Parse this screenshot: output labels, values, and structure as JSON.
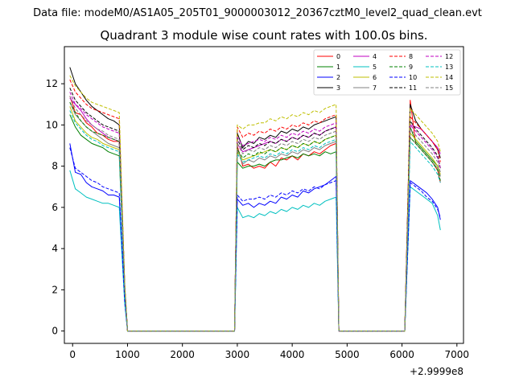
{
  "chart_data": {
    "type": "line",
    "suptitle": "Data file: modeM0/AS1A05_205T01_9000003012_20367cztM0_level2_quad_clean.evt",
    "title": "Quadrant 3 module wise count rates with 100.0s bins.",
    "xlabel": "",
    "ylabel": "",
    "x_offset_label": "+2.9999e8",
    "xlim": [
      -150,
      7120
    ],
    "ylim": [
      -0.6,
      13.8
    ],
    "x_ticks": [
      0,
      1000,
      2000,
      3000,
      4000,
      5000,
      6000,
      7000
    ],
    "x_tick_labels": [
      "0",
      "1000",
      "2000",
      "3000",
      "4000",
      "5000",
      "6000",
      "7000"
    ],
    "y_ticks": [
      0,
      2,
      4,
      6,
      8,
      10,
      12
    ],
    "y_tick_labels": [
      "0",
      "2",
      "4",
      "6",
      "8",
      "10",
      "12"
    ],
    "grid": false,
    "legend_placement": "top-right",
    "legend_columns": 4,
    "segments": {
      "seg1_x": [
        -50,
        50,
        150,
        250,
        350,
        450,
        550,
        650,
        750,
        850
      ],
      "drop_x": [
        950,
        1000
      ],
      "zero_x": [
        1000,
        2950
      ],
      "seg2_x": [
        3000,
        3100,
        3200,
        3300,
        3400,
        3500,
        3600,
        3700,
        3800,
        3900,
        4000,
        4100,
        4200,
        4300,
        4400,
        4500,
        4600,
        4700,
        4800
      ],
      "seg3_x": [
        6150,
        6250,
        6350,
        6450,
        6550,
        6650,
        6700
      ]
    },
    "series": [
      {
        "name": "0",
        "color": "#ff0000",
        "dashed": false,
        "seg1": [
          11.4,
          10.6,
          10.5,
          10.1,
          9.9,
          9.6,
          9.5,
          9.3,
          9.2,
          9.2
        ],
        "seg2": [
          9.0,
          8.0,
          8.1,
          7.9,
          8.0,
          7.9,
          8.2,
          8.0,
          8.4,
          8.3,
          8.5,
          8.3,
          8.6,
          8.5,
          8.7,
          8.6,
          8.8,
          9.0,
          9.1
        ],
        "seg3": [
          11.2,
          9.1,
          8.8,
          8.5,
          8.2,
          7.8,
          7.2
        ]
      },
      {
        "name": "1",
        "color": "#008000",
        "dashed": false,
        "seg1": [
          10.5,
          9.9,
          9.5,
          9.3,
          9.1,
          9.0,
          8.9,
          8.7,
          8.6,
          8.5
        ],
        "seg2": [
          8.2,
          7.9,
          8.0,
          8.0,
          8.1,
          8.0,
          8.2,
          8.3,
          8.3,
          8.4,
          8.5,
          8.4,
          8.6,
          8.5,
          8.6,
          8.5,
          8.7,
          8.6,
          8.7
        ],
        "seg3": [
          9.9,
          9.2,
          8.9,
          8.6,
          8.3,
          8.0,
          7.5
        ]
      },
      {
        "name": "2",
        "color": "#0000ff",
        "dashed": false,
        "seg1": [
          9.1,
          7.7,
          7.6,
          7.2,
          7.0,
          6.9,
          6.8,
          6.6,
          6.6,
          6.5
        ],
        "seg2": [
          6.4,
          6.1,
          6.2,
          6.0,
          6.2,
          6.1,
          6.3,
          6.2,
          6.5,
          6.4,
          6.6,
          6.5,
          6.8,
          6.7,
          6.9,
          7.0,
          7.1,
          7.3,
          7.5
        ],
        "seg3": [
          7.3,
          7.1,
          6.9,
          6.7,
          6.4,
          6.0,
          5.4
        ]
      },
      {
        "name": "3",
        "color": "#000000",
        "dashed": false,
        "seg1": [
          12.8,
          12.0,
          11.6,
          11.2,
          10.9,
          10.7,
          10.5,
          10.3,
          10.2,
          10.0
        ],
        "seg2": [
          9.6,
          8.9,
          9.2,
          9.1,
          9.4,
          9.3,
          9.5,
          9.4,
          9.7,
          9.6,
          9.8,
          9.7,
          9.9,
          9.8,
          10.0,
          10.1,
          10.2,
          10.3,
          10.4
        ],
        "seg3": [
          11.0,
          10.2,
          9.8,
          9.5,
          9.2,
          8.8,
          8.4
        ]
      },
      {
        "name": "4",
        "color": "#c000c0",
        "dashed": false,
        "seg1": [
          11.3,
          11.0,
          10.7,
          10.3,
          10.0,
          9.8,
          9.6,
          9.4,
          9.3,
          9.2
        ],
        "seg2": [
          9.1,
          8.7,
          8.8,
          8.9,
          9.0,
          9.1,
          9.2,
          9.1,
          9.3,
          9.2,
          9.4,
          9.3,
          9.5,
          9.4,
          9.6,
          9.5,
          9.7,
          9.8,
          9.9
        ],
        "seg3": [
          10.0,
          9.9,
          9.8,
          9.5,
          9.2,
          8.9,
          8.6
        ]
      },
      {
        "name": "5",
        "color": "#00c0c0",
        "dashed": false,
        "seg1": [
          7.8,
          6.9,
          6.7,
          6.5,
          6.4,
          6.3,
          6.2,
          6.2,
          6.1,
          6.0
        ],
        "seg2": [
          6.0,
          5.5,
          5.6,
          5.5,
          5.7,
          5.6,
          5.8,
          5.7,
          5.9,
          5.8,
          6.0,
          5.9,
          6.1,
          6.0,
          6.2,
          6.1,
          6.3,
          6.4,
          6.5
        ],
        "seg3": [
          7.0,
          6.8,
          6.6,
          6.4,
          6.2,
          5.6,
          4.9
        ]
      },
      {
        "name": "6",
        "color": "#bfbf00",
        "dashed": false,
        "seg1": [
          10.9,
          10.2,
          9.9,
          9.6,
          9.4,
          9.3,
          9.1,
          9.0,
          8.9,
          8.8
        ],
        "seg2": [
          8.7,
          8.3,
          8.4,
          8.5,
          8.6,
          8.7,
          8.8,
          8.7,
          8.9,
          8.8,
          9.0,
          8.9,
          9.1,
          9.0,
          9.2,
          9.1,
          9.3,
          9.4,
          9.5
        ],
        "seg3": [
          9.6,
          9.3,
          9.0,
          8.7,
          8.4,
          8.0,
          7.6
        ]
      },
      {
        "name": "7",
        "color": "#808080",
        "dashed": false,
        "seg1": [
          11.1,
          10.5,
          10.2,
          9.9,
          9.7,
          9.5,
          9.3,
          9.1,
          9.0,
          8.9
        ],
        "seg2": [
          8.9,
          8.1,
          8.3,
          8.2,
          8.4,
          8.3,
          8.5,
          8.4,
          8.6,
          8.5,
          8.7,
          8.6,
          8.8,
          8.7,
          8.9,
          8.8,
          9.0,
          9.1,
          9.2
        ],
        "seg3": [
          9.4,
          9.1,
          8.8,
          8.5,
          8.2,
          7.9,
          7.5
        ]
      },
      {
        "name": "8",
        "color": "#ff0000",
        "dashed": true,
        "seg1": [
          12.2,
          11.6,
          11.3,
          11.0,
          10.8,
          10.7,
          10.6,
          10.5,
          10.4,
          10.3
        ],
        "seg2": [
          9.9,
          9.4,
          9.6,
          9.5,
          9.7,
          9.6,
          9.8,
          9.7,
          9.9,
          9.8,
          10.0,
          9.9,
          10.1,
          10.0,
          10.2,
          10.1,
          10.3,
          10.4,
          10.5
        ],
        "seg3": [
          10.4,
          10.1,
          9.8,
          9.5,
          9.2,
          8.8,
          8.2
        ]
      },
      {
        "name": "9",
        "color": "#008000",
        "dashed": true,
        "seg1": [
          11.1,
          10.6,
          10.2,
          9.9,
          9.7,
          9.6,
          9.5,
          9.4,
          9.3,
          9.2
        ],
        "seg2": [
          8.8,
          8.4,
          8.6,
          8.5,
          8.7,
          8.6,
          8.8,
          8.7,
          8.9,
          8.8,
          9.0,
          8.9,
          9.1,
          9.0,
          9.2,
          9.1,
          9.3,
          9.4,
          9.5
        ],
        "seg3": [
          9.4,
          9.1,
          8.8,
          8.5,
          8.2,
          7.8,
          7.3
        ]
      },
      {
        "name": "10",
        "color": "#0000ff",
        "dashed": true,
        "seg1": [
          8.9,
          7.9,
          7.7,
          7.5,
          7.3,
          7.2,
          7.0,
          6.9,
          6.8,
          6.7
        ],
        "seg2": [
          6.6,
          6.3,
          6.4,
          6.4,
          6.5,
          6.4,
          6.6,
          6.5,
          6.7,
          6.6,
          6.8,
          6.7,
          6.9,
          6.8,
          7.0,
          6.9,
          7.1,
          7.2,
          7.3
        ],
        "seg3": [
          7.2,
          7.0,
          6.8,
          6.5,
          6.3,
          5.9,
          5.5
        ]
      },
      {
        "name": "11",
        "color": "#000000",
        "dashed": true,
        "seg1": [
          11.8,
          11.2,
          10.9,
          10.6,
          10.4,
          10.2,
          10.0,
          9.9,
          9.8,
          9.7
        ],
        "seg2": [
          9.3,
          8.8,
          9.0,
          8.9,
          9.1,
          9.0,
          9.2,
          9.1,
          9.3,
          9.2,
          9.4,
          9.3,
          9.5,
          9.4,
          9.6,
          9.5,
          9.7,
          9.8,
          9.9
        ],
        "seg3": [
          10.2,
          9.8,
          9.5,
          9.2,
          8.9,
          8.5,
          7.9
        ]
      },
      {
        "name": "12",
        "color": "#c000c0",
        "dashed": true,
        "seg1": [
          11.6,
          11.0,
          10.8,
          10.5,
          10.3,
          10.1,
          9.9,
          9.8,
          9.7,
          9.6
        ],
        "seg2": [
          9.4,
          9.0,
          9.1,
          9.2,
          9.3,
          9.2,
          9.4,
          9.3,
          9.5,
          9.4,
          9.6,
          9.5,
          9.7,
          9.6,
          9.8,
          9.7,
          9.9,
          10.0,
          10.1
        ],
        "seg3": [
          10.0,
          9.7,
          9.4,
          9.1,
          8.8,
          8.4,
          7.9
        ]
      },
      {
        "name": "13",
        "color": "#00c0c0",
        "dashed": true,
        "seg1": [
          10.7,
          10.1,
          9.8,
          9.5,
          9.3,
          9.2,
          9.0,
          8.9,
          8.8,
          8.7
        ],
        "seg2": [
          8.6,
          8.2,
          8.3,
          8.4,
          8.5,
          8.4,
          8.6,
          8.5,
          8.7,
          8.6,
          8.8,
          8.7,
          8.9,
          8.8,
          9.0,
          8.9,
          9.1,
          9.2,
          9.3
        ],
        "seg3": [
          9.2,
          8.9,
          8.6,
          8.3,
          8.0,
          7.6,
          7.2
        ]
      },
      {
        "name": "14",
        "color": "#bfbf00",
        "dashed": true,
        "seg1": [
          12.4,
          11.9,
          11.6,
          11.3,
          11.1,
          11.0,
          10.9,
          10.8,
          10.7,
          10.6
        ],
        "seg2": [
          10.0,
          9.8,
          10.0,
          10.0,
          10.1,
          10.1,
          10.3,
          10.2,
          10.4,
          10.3,
          10.5,
          10.4,
          10.6,
          10.5,
          10.7,
          10.6,
          10.8,
          10.9,
          11.0
        ],
        "seg3": [
          10.8,
          10.5,
          10.2,
          9.9,
          9.6,
          9.2,
          8.7
        ]
      },
      {
        "name": "15",
        "color": "#808080",
        "dashed": true,
        "seg1": [
          11.4,
          10.8,
          10.5,
          10.2,
          10.0,
          9.8,
          9.7,
          9.5,
          9.4,
          9.3
        ],
        "seg2": [
          9.1,
          8.6,
          8.8,
          8.7,
          8.9,
          8.8,
          9.0,
          8.9,
          9.1,
          9.0,
          9.2,
          9.1,
          9.3,
          9.2,
          9.4,
          9.3,
          9.5,
          9.6,
          9.7
        ],
        "seg3": [
          9.8,
          9.5,
          9.2,
          8.9,
          8.6,
          8.2,
          7.7
        ]
      }
    ]
  }
}
